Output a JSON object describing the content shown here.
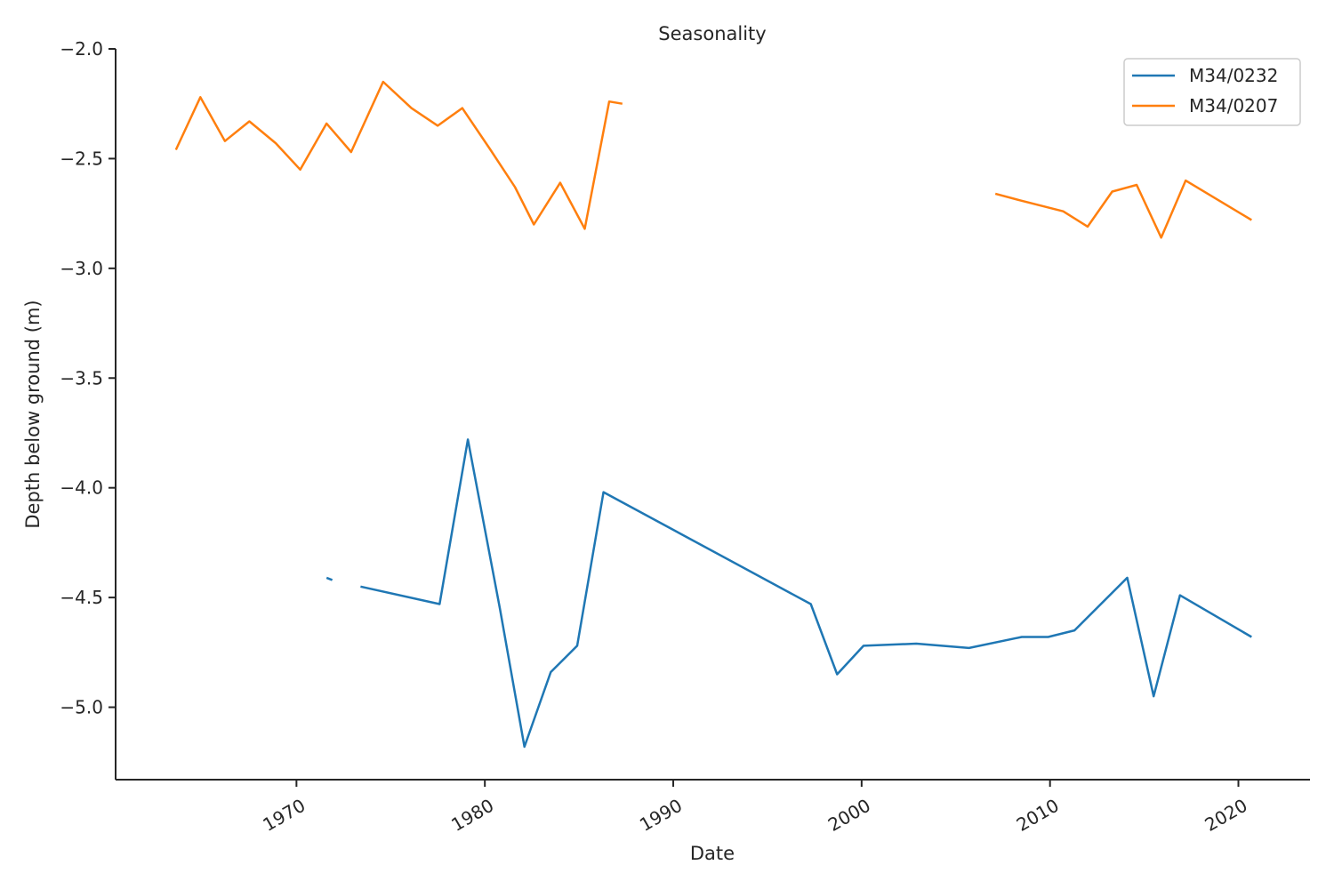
{
  "chart_data": {
    "type": "line",
    "title": "Seasonality",
    "xlabel": "Date",
    "ylabel": "Depth below ground (m)",
    "xlim": [
      1960.4,
      2023.8
    ],
    "ylim": [
      -5.33,
      -2.0
    ],
    "xticks": [
      1970,
      1980,
      1990,
      2000,
      2010,
      2020
    ],
    "xtick_labels": [
      "1970",
      "1980",
      "1990",
      "2000",
      "2010",
      "2020"
    ],
    "yticks": [
      -2.0,
      -2.5,
      -3.0,
      -3.5,
      -4.0,
      -4.5,
      -5.0
    ],
    "ytick_labels": [
      "−2.0",
      "−2.5",
      "−3.0",
      "−3.5",
      "−4.0",
      "−4.5",
      "−5.0"
    ],
    "grid": false,
    "legend_position": "top-right",
    "series": [
      {
        "name": "M34/0232",
        "color": "#1f77b4",
        "segments": [
          [
            [
              1971.6,
              -4.41
            ],
            [
              1971.9,
              -4.42
            ]
          ],
          [
            [
              1973.4,
              -4.45
            ],
            [
              1977.6,
              -4.53
            ],
            [
              1979.1,
              -3.78
            ],
            [
              1980.8,
              -4.55
            ],
            [
              1982.1,
              -5.18
            ],
            [
              1983.5,
              -4.84
            ],
            [
              1984.9,
              -4.72
            ],
            [
              1986.3,
              -4.02
            ],
            [
              1997.3,
              -4.53
            ],
            [
              1998.7,
              -4.85
            ],
            [
              2000.1,
              -4.72
            ],
            [
              2002.9,
              -4.71
            ],
            [
              2005.7,
              -4.73
            ],
            [
              2008.5,
              -4.68
            ],
            [
              2009.9,
              -4.68
            ],
            [
              2011.3,
              -4.65
            ],
            [
              2014.1,
              -4.41
            ],
            [
              2015.5,
              -4.95
            ],
            [
              2016.9,
              -4.49
            ],
            [
              2020.7,
              -4.68
            ]
          ]
        ]
      },
      {
        "name": "M34/0207",
        "color": "#ff7f0e",
        "segments": [
          [
            [
              1963.6,
              -2.46
            ],
            [
              1964.9,
              -2.22
            ],
            [
              1966.2,
              -2.42
            ],
            [
              1967.5,
              -2.33
            ],
            [
              1968.9,
              -2.43
            ],
            [
              1970.2,
              -2.55
            ],
            [
              1971.6,
              -2.34
            ],
            [
              1972.9,
              -2.47
            ],
            [
              1974.6,
              -2.15
            ],
            [
              1976.1,
              -2.27
            ],
            [
              1977.5,
              -2.35
            ],
            [
              1978.8,
              -2.27
            ],
            [
              1980.3,
              -2.46
            ],
            [
              1981.6,
              -2.63
            ],
            [
              1982.6,
              -2.8
            ],
            [
              1984.0,
              -2.61
            ],
            [
              1985.3,
              -2.82
            ],
            [
              1986.6,
              -2.24
            ],
            [
              1987.3,
              -2.25
            ]
          ],
          [
            [
              2007.1,
              -2.66
            ],
            [
              2008.4,
              -2.69
            ],
            [
              2010.7,
              -2.74
            ],
            [
              2012.0,
              -2.81
            ],
            [
              2013.3,
              -2.65
            ],
            [
              2014.6,
              -2.62
            ],
            [
              2015.9,
              -2.86
            ],
            [
              2017.2,
              -2.6
            ],
            [
              2020.7,
              -2.78
            ]
          ]
        ]
      }
    ]
  }
}
